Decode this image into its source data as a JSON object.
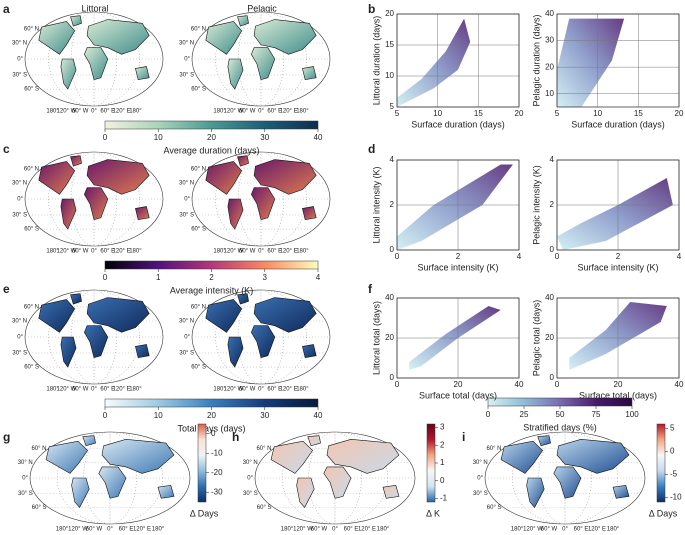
{
  "panel_letters": [
    "a",
    "b",
    "c",
    "d",
    "e",
    "f",
    "g",
    "h",
    "i"
  ],
  "map_titles": [
    "Littoral",
    "Pelagic"
  ],
  "lat_labels": [
    "60° N",
    "30° N",
    "0°",
    "30° S",
    "60° S"
  ],
  "lon_labels": [
    "180°",
    "120° W",
    "60° W",
    "0°",
    "60° E",
    "120° E",
    "180°"
  ],
  "colorbars": [
    {
      "label": "Average duration (days)",
      "orientation": "horizontal",
      "lim": [
        0,
        40
      ],
      "ticks": [
        0,
        10,
        20,
        30,
        40
      ],
      "colors": [
        "#f4f1df",
        "#a9d4b9",
        "#4c9a93",
        "#1c5f78",
        "#0d2d4f"
      ]
    },
    {
      "label": "Average intensity (K)",
      "orientation": "horizontal",
      "lim": [
        0,
        4
      ],
      "ticks": [
        0,
        1,
        2,
        3,
        4
      ],
      "colors": [
        "#000004",
        "#51127c",
        "#b63679",
        "#fb8861",
        "#fcfdbf"
      ]
    },
    {
      "label": "Total days (days)",
      "orientation": "horizontal",
      "lim": [
        0,
        40
      ],
      "ticks": [
        0,
        10,
        20,
        30,
        40
      ],
      "colors": [
        "#f7fbff",
        "#9ecae1",
        "#3a7fc1",
        "#133b7a",
        "#08183a"
      ]
    },
    {
      "label": "Stratified days (%)",
      "orientation": "horizontal",
      "lim": [
        0,
        100
      ],
      "ticks": [
        0,
        25,
        50,
        75,
        100
      ],
      "colors": [
        "#d7f0f3",
        "#8fbcd8",
        "#7a6bb0",
        "#4a1a6e",
        "#2a0840"
      ]
    },
    {
      "label": "Δ Days",
      "orientation": "vertical",
      "lim": [
        -35,
        5
      ],
      "ticks": [
        -30,
        -20,
        -10,
        0
      ],
      "colors": [
        "#08306b",
        "#2f6fae",
        "#8fbfdc",
        "#eef3f7",
        "#fbe3d6",
        "#d6604d"
      ]
    },
    {
      "label": "Δ K",
      "orientation": "vertical",
      "lim": [
        -1.2,
        3.2
      ],
      "ticks": [
        -1,
        0,
        1,
        2,
        3
      ],
      "colors": [
        "#2166ac",
        "#d1e5f0",
        "#f7f7f7",
        "#f4a582",
        "#b2182b",
        "#67001f"
      ]
    },
    {
      "label": "Δ Days",
      "orientation": "vertical",
      "lim": [
        -11,
        6
      ],
      "ticks": [
        -10,
        -5,
        0,
        5
      ],
      "colors": [
        "#08306b",
        "#3a7fc1",
        "#c6dbef",
        "#f7f7f7",
        "#f4a582",
        "#b2182b"
      ]
    }
  ],
  "scatters": [
    {
      "xlabel": "Surface duration (days)",
      "ylabel": "Littoral duration (days)",
      "xlim": [
        5,
        20
      ],
      "ylim": [
        5,
        20
      ],
      "xticks": [
        5,
        10,
        15,
        20
      ],
      "yticks": [
        5,
        10,
        15,
        20
      ],
      "grid": true
    },
    {
      "xlabel": "Surface duration (days)",
      "ylabel": "Pelagic duration (days)",
      "xlim": [
        5,
        20
      ],
      "ylim": [
        5,
        40
      ],
      "xticks": [
        5,
        10,
        15,
        20
      ],
      "yticks": [
        10,
        20,
        30,
        40
      ],
      "grid": true
    },
    {
      "xlabel": "Surface intensity (K)",
      "ylabel": "Littoral intensity (K)",
      "xlim": [
        0,
        4
      ],
      "ylim": [
        0,
        4
      ],
      "xticks": [
        0,
        2,
        4
      ],
      "yticks": [
        0,
        2,
        4
      ],
      "grid": true
    },
    {
      "xlabel": "Surface intensity (K)",
      "ylabel": "Pelagic intensity (K)",
      "xlim": [
        0,
        4
      ],
      "ylim": [
        0,
        4
      ],
      "xticks": [
        0,
        2,
        4
      ],
      "yticks": [
        0,
        2,
        4
      ],
      "grid": true
    },
    {
      "xlabel": "Surface total (days)",
      "ylabel": "Littoral total (days)",
      "xlim": [
        0,
        40
      ],
      "ylim": [
        0,
        40
      ],
      "xticks": [
        0,
        20,
        40
      ],
      "yticks": [
        0,
        20,
        40
      ],
      "grid": true
    },
    {
      "xlabel": "Surface total (days)",
      "ylabel": "Pelagic total (days)",
      "xlim": [
        0,
        40
      ],
      "ylim": [
        0,
        40
      ],
      "xticks": [
        0,
        20,
        40
      ],
      "yticks": [
        0,
        20,
        40
      ],
      "grid": true
    }
  ]
}
